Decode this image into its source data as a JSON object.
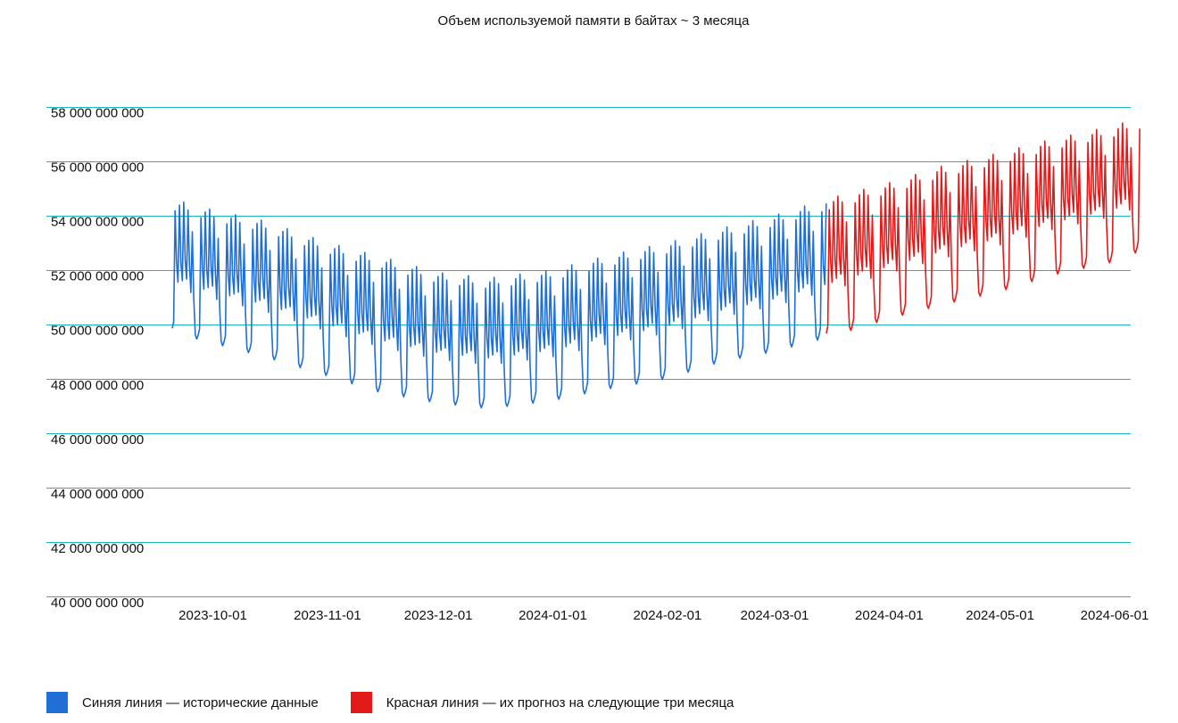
{
  "chart_data": {
    "type": "line",
    "title": "Объем используемой памяти в байтах ~ 3 месяца",
    "xlabel": "",
    "ylabel": "",
    "ylim": [
      40000000000,
      58000000000
    ],
    "yticks": [
      {
        "value": 58000000000,
        "label": "58 000 000 000"
      },
      {
        "value": 56000000000,
        "label": "56 000 000 000"
      },
      {
        "value": 54000000000,
        "label": "54 000 000 000"
      },
      {
        "value": 52000000000,
        "label": "52 000 000 000"
      },
      {
        "value": 50000000000,
        "label": "50 000 000 000"
      },
      {
        "value": 48000000000,
        "label": "48 000 000 000"
      },
      {
        "value": 46000000000,
        "label": "46 000 000 000"
      },
      {
        "value": 44000000000,
        "label": "44 000 000 000"
      },
      {
        "value": 42000000000,
        "label": "42 000 000 000"
      },
      {
        "value": 40000000000,
        "label": "40 000 000 000"
      }
    ],
    "xlim": [
      "2023-09-20",
      "2024-06-08"
    ],
    "xticks": [
      "2023-10-01",
      "2023-11-01",
      "2023-12-01",
      "2024-01-01",
      "2024-02-01",
      "2024-03-01",
      "2024-04-01",
      "2024-05-01",
      "2024-06-01"
    ],
    "grid": true,
    "legend_position": "bottom-left",
    "series": [
      {
        "name": "Синяя линия — исторические данные",
        "color": "#1f6fd6",
        "style": "weekly-oscillating",
        "keypoints": [
          {
            "x": "2023-09-20",
            "min": 49600000000,
            "max": 54600000000
          },
          {
            "x": "2023-10-01",
            "min": 49200000000,
            "max": 54200000000
          },
          {
            "x": "2023-10-15",
            "min": 48700000000,
            "max": 53800000000
          },
          {
            "x": "2023-11-01",
            "min": 48000000000,
            "max": 53000000000
          },
          {
            "x": "2023-11-15",
            "min": 47400000000,
            "max": 52500000000
          },
          {
            "x": "2023-12-01",
            "min": 47000000000,
            "max": 51900000000
          },
          {
            "x": "2023-12-15",
            "min": 46800000000,
            "max": 51700000000
          },
          {
            "x": "2024-01-01",
            "min": 47100000000,
            "max": 52000000000
          },
          {
            "x": "2024-01-15",
            "min": 47500000000,
            "max": 52500000000
          },
          {
            "x": "2024-02-01",
            "min": 47900000000,
            "max": 53000000000
          },
          {
            "x": "2024-02-15",
            "min": 48500000000,
            "max": 53500000000
          },
          {
            "x": "2024-03-01",
            "min": 48900000000,
            "max": 54000000000
          },
          {
            "x": "2024-03-15",
            "min": 49400000000,
            "max": 54600000000
          }
        ]
      },
      {
        "name": "Красная линия — их прогноз на следующие три месяца",
        "color": "#e31a1a",
        "style": "weekly-oscillating",
        "keypoints": [
          {
            "x": "2024-03-15",
            "min": 49400000000,
            "max": 54600000000
          },
          {
            "x": "2024-04-01",
            "min": 50100000000,
            "max": 55200000000
          },
          {
            "x": "2024-04-15",
            "min": 50600000000,
            "max": 55800000000
          },
          {
            "x": "2024-05-01",
            "min": 51100000000,
            "max": 56300000000
          },
          {
            "x": "2024-05-15",
            "min": 51700000000,
            "max": 56800000000
          },
          {
            "x": "2024-06-01",
            "min": 52200000000,
            "max": 57300000000
          },
          {
            "x": "2024-06-08",
            "min": 52600000000,
            "max": 57600000000
          }
        ]
      }
    ]
  },
  "legend": [
    {
      "label": "Синяя линия — исторические данные",
      "color": "#1f6fd6"
    },
    {
      "label": "Красная линия — их прогноз на следующие три месяца",
      "color": "#e31a1a"
    }
  ]
}
